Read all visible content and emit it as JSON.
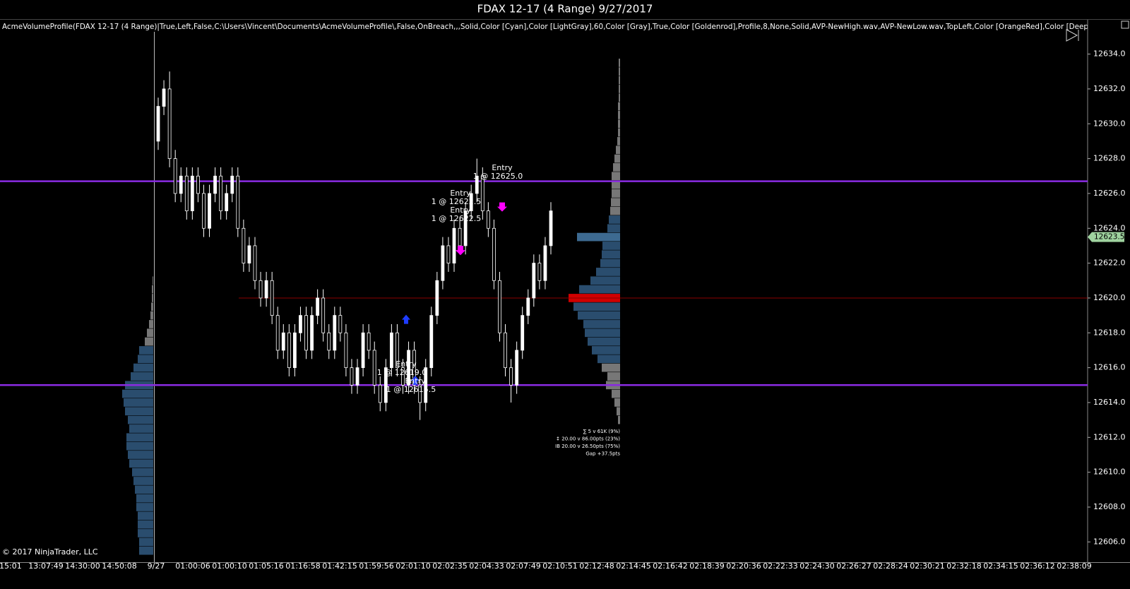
{
  "chart_data": {
    "type": "candlestick",
    "title": "FDAX 12-17 (4 Range)  9/27/2017",
    "indicator_label": "AcmeVolumeProfile(FDAX 12-17 (4 Range)|True,Left,False,C:\\Users\\Vincent\\Documents\\AcmeVolumeProfile\\,False,OnBreach,,,Solid,Color [Cyan],Color [LightGray],60,Color [Gray],True,Color [Goldenrod],Profile,8,None,Solid,AVP-NewHigh.wav,AVP-NewLow.wav,TopLeft,Color [OrangeRed],Color [Deep",
    "copyright": "© 2017 NinjaTrader, LLC",
    "ylim": [
      12605,
      12635.3
    ],
    "yticks": [
      {
        "value": 12634,
        "label": "12634.0"
      },
      {
        "value": 12632,
        "label": "12632.0"
      },
      {
        "value": 12630,
        "label": "12630.0"
      },
      {
        "value": 12628,
        "label": "12628.0"
      },
      {
        "value": 12626,
        "label": "12626.0"
      },
      {
        "value": 12624,
        "label": "12624.0"
      },
      {
        "value": 12622,
        "label": "12622.0"
      },
      {
        "value": 12620,
        "label": "12620.0"
      },
      {
        "value": 12618,
        "label": "12618.0"
      },
      {
        "value": 12616,
        "label": "12616.0"
      },
      {
        "value": 12614,
        "label": "12614.0"
      },
      {
        "value": 12612,
        "label": "12612.0"
      },
      {
        "value": 12610,
        "label": "12610.0"
      },
      {
        "value": 12608,
        "label": "12608.0"
      },
      {
        "value": 12606,
        "label": "12606.0"
      }
    ],
    "xtick_labels": [
      ":15:01",
      "13:07:49",
      "14:30:00",
      "14:50:08",
      "9/27",
      "01:00:06",
      "01:00:10",
      "01:05:16",
      "01:16:58",
      "01:42:15",
      "01:59:56",
      "02:01:10",
      "02:02:35",
      "02:04:33",
      "02:07:49",
      "02:10:51",
      "02:12:48",
      "02:14:45",
      "02:16:42",
      "02:18:39",
      "02:20:36",
      "02:22:33",
      "02:24:30",
      "02:26:27",
      "02:28:24",
      "02:30:21",
      "02:32:18",
      "02:34:15",
      "02:36:12",
      "02:38:09"
    ],
    "last_price": 12623.5,
    "candles": [
      [
        12629,
        12631.5,
        12628.5,
        12631
      ],
      [
        12631,
        12632.5,
        12630.5,
        12632
      ],
      [
        12632,
        12633,
        12627.5,
        12628
      ],
      [
        12628,
        12628.5,
        12625.5,
        12626
      ],
      [
        12626,
        12627.5,
        12625.5,
        12627
      ],
      [
        12627,
        12627.5,
        12624.5,
        12625
      ],
      [
        12625,
        12627.5,
        12624.5,
        12627
      ],
      [
        12627,
        12627.5,
        12625.5,
        12626
      ],
      [
        12626,
        12626.5,
        12623.5,
        12624
      ],
      [
        12624,
        12626.5,
        12623.5,
        12626
      ],
      [
        12626,
        12627.5,
        12625.5,
        12627
      ],
      [
        12627,
        12627.5,
        12624.5,
        12625
      ],
      [
        12625,
        12626.5,
        12624.5,
        12626
      ],
      [
        12626,
        12627.5,
        12625.5,
        12627
      ],
      [
        12627,
        12627.5,
        12623.5,
        12624
      ],
      [
        12624,
        12624.5,
        12621.5,
        12622
      ],
      [
        12622,
        12623.5,
        12621.5,
        12623
      ],
      [
        12623,
        12623.5,
        12620.5,
        12621
      ],
      [
        12621,
        12621.5,
        12619.5,
        12620
      ],
      [
        12620,
        12621.5,
        12619.5,
        12621
      ],
      [
        12621,
        12621.5,
        12618.5,
        12619
      ],
      [
        12619,
        12619.5,
        12616.5,
        12617
      ],
      [
        12617,
        12618.5,
        12616.5,
        12618
      ],
      [
        12618,
        12618.5,
        12615.5,
        12616
      ],
      [
        12616,
        12618.5,
        12615.5,
        12618
      ],
      [
        12618,
        12619.5,
        12617.5,
        12619
      ],
      [
        12619,
        12619.5,
        12616.5,
        12617
      ],
      [
        12617,
        12619.5,
        12616.5,
        12619
      ],
      [
        12619,
        12620.5,
        12618.5,
        12620
      ],
      [
        12620,
        12620.5,
        12617.5,
        12618
      ],
      [
        12618,
        12618.5,
        12616.5,
        12617
      ],
      [
        12617,
        12619.5,
        12616.5,
        12619
      ],
      [
        12619,
        12619.5,
        12617.5,
        12618
      ],
      [
        12618,
        12618.5,
        12615.5,
        12616
      ],
      [
        12616,
        12616.5,
        12614.5,
        12615
      ],
      [
        12615,
        12616.5,
        12614.5,
        12616
      ],
      [
        12616,
        12618.5,
        12615.5,
        12618
      ],
      [
        12618,
        12618.5,
        12616.5,
        12617
      ],
      [
        12617,
        12617.5,
        12614.5,
        12615
      ],
      [
        12615,
        12615.5,
        12613.5,
        12614
      ],
      [
        12614,
        12616.5,
        12613.5,
        12616
      ],
      [
        12616,
        12618.5,
        12615.5,
        12618
      ],
      [
        12618,
        12618.5,
        12615.5,
        12616
      ],
      [
        12616,
        12616.5,
        12614.5,
        12615
      ],
      [
        12615,
        12617.5,
        12614.5,
        12617
      ],
      [
        12617,
        12617.5,
        12614.5,
        12615
      ],
      [
        12615,
        12615.5,
        12613,
        12614
      ],
      [
        12614,
        12616.5,
        12613.5,
        12616
      ],
      [
        12616,
        12619.5,
        12615.5,
        12619
      ],
      [
        12619,
        12621.5,
        12618.5,
        12621
      ],
      [
        12621,
        12623.5,
        12620.5,
        12623
      ],
      [
        12623,
        12623.5,
        12621.5,
        12622
      ],
      [
        12622,
        12624.5,
        12621.5,
        12624
      ],
      [
        12624,
        12624.5,
        12622.5,
        12623
      ],
      [
        12623,
        12625.5,
        12622.5,
        12625
      ],
      [
        12625,
        12626.5,
        12624.5,
        12626
      ],
      [
        12626,
        12628,
        12625.5,
        12627
      ],
      [
        12627,
        12627.5,
        12624.5,
        12625
      ],
      [
        12625,
        12625.5,
        12623.5,
        12624
      ],
      [
        12624,
        12624.5,
        12620.5,
        12621
      ],
      [
        12621,
        12621.5,
        12617.5,
        12618
      ],
      [
        12618,
        12618.5,
        12615.5,
        12616
      ],
      [
        12616,
        12616.5,
        12614,
        12615
      ],
      [
        12615,
        12617.5,
        12614.5,
        12617
      ],
      [
        12617,
        12619.5,
        12616.5,
        12619
      ],
      [
        12619,
        12620.5,
        12618.5,
        12620
      ],
      [
        12620,
        12622.5,
        12619.5,
        12622
      ],
      [
        12622,
        12622.5,
        12620.5,
        12621
      ],
      [
        12621,
        12623.5,
        12620.5,
        12623
      ],
      [
        12623,
        12625.5,
        12622.5,
        12625
      ]
    ],
    "levels": [
      {
        "value": 12626.7,
        "color": "#8a2be2"
      },
      {
        "value": 12615,
        "color": "#8a2be2"
      },
      {
        "value": 12620,
        "color": "#8b0000"
      }
    ],
    "profiles": [
      {
        "prices": [
          12633.5,
          12633,
          12632.5,
          12632,
          12631.5,
          12631,
          12630.5,
          12630,
          12629.5,
          12629,
          12628.5,
          12628,
          12627.5,
          12627,
          12626.5,
          12626,
          12625.5,
          12625,
          12624.5,
          12624,
          12623.5,
          12623,
          12622.5,
          12622,
          12621.5,
          12621,
          12620.5,
          12620,
          12619.5,
          12619,
          12618.5,
          12618,
          12617.5,
          12617,
          12616.5,
          12616,
          12615.5,
          12615,
          12614.5,
          12614,
          12613.5,
          12613
        ],
        "volumes": [
          2,
          2,
          2,
          2,
          2,
          3,
          3,
          3,
          3,
          4,
          6,
          8,
          10,
          12,
          12,
          12,
          13,
          14,
          16,
          18,
          61,
          25,
          26,
          28,
          34,
          42,
          58,
          73,
          66,
          60,
          52,
          50,
          46,
          40,
          32,
          26,
          18,
          20,
          12,
          8,
          5,
          3
        ],
        "colors": [
          "#777",
          "#777",
          "#777",
          "#777",
          "#777",
          "#777",
          "#777",
          "#777",
          "#777",
          "#777",
          "#777",
          "#777",
          "#777",
          "#777",
          "#777",
          "#777",
          "#777",
          "#777",
          "#2a4d6e",
          "#2a4d6e",
          "#3d6a91",
          "#2a4d6e",
          "#2a4d6e",
          "#2a4d6e",
          "#2a4d6e",
          "#2a4d6e",
          "#2a4d6e",
          "#d00000",
          "#2a4d6e",
          "#2a4d6e",
          "#2a4d6e",
          "#2a4d6e",
          "#2a4d6e",
          "#2a4d6e",
          "#2a4d6e",
          "#777",
          "#777",
          "#777",
          "#777",
          "#777",
          "#777",
          "#777"
        ]
      },
      {
        "prices": [
          12621,
          12620.5,
          12620,
          12619.5,
          12619,
          12618.5,
          12618,
          12617.5,
          12617,
          12616.5,
          12616,
          12615.5,
          12615,
          12614.5,
          12614,
          12613.5,
          12613,
          12612.5,
          12612,
          12611.5,
          12611,
          12610.5,
          12610,
          12609.5,
          12609,
          12608.5,
          12608,
          12607.5,
          12607,
          12606.5,
          12606,
          12605.5
        ],
        "volumes": [
          1,
          2,
          2,
          3,
          4,
          6,
          9,
          12,
          20,
          22,
          28,
          32,
          40,
          44,
          42,
          40,
          36,
          34,
          38,
          38,
          36,
          34,
          30,
          28,
          26,
          24,
          24,
          22,
          22,
          22,
          20,
          20
        ],
        "colors": [
          "#777",
          "#777",
          "#777",
          "#777",
          "#777",
          "#777",
          "#777",
          "#777",
          "#2a4d6e",
          "#2a4d6e",
          "#2a4d6e",
          "#2a4d6e",
          "#2a4d6e",
          "#2a4d6e",
          "#2a4d6e",
          "#2a4d6e",
          "#2a4d6e",
          "#2a4d6e",
          "#2a4d6e",
          "#2a4d6e",
          "#2a4d6e",
          "#2a4d6e",
          "#2a4d6e",
          "#2a4d6e",
          "#2a4d6e",
          "#2a4d6e",
          "#2a4d6e",
          "#2a4d6e",
          "#2a4d6e",
          "#2a4d6e",
          "#2a4d6e",
          "#2a4d6e"
        ]
      }
    ],
    "entries": [
      {
        "label": "Entry",
        "text": "1 @ 12625.0",
        "price": 12625,
        "color": "#ff00ff"
      },
      {
        "label": "Entry",
        "text": "1 @ 12622.5",
        "price": 12622.5,
        "color": "#ff00ff"
      },
      {
        "label": "Entry",
        "text": "1 @ 12622.5",
        "price": 12622.5,
        "color": "#ff00ff"
      },
      {
        "label": "Entry",
        "text": "1 @ 12619.0",
        "price": 12619,
        "color": "#1e3cff"
      },
      {
        "label": "Entry",
        "text": "1 @ 12615.5",
        "price": 12615.5,
        "color": "#1e3cff"
      }
    ],
    "stats": [
      "∑ 5 v 61K (9%)",
      "↕ 20.00 v 86.00pts (23%)",
      "IB 20.00 v 26.50pts (75%)",
      "Gap +37.5pts"
    ]
  }
}
